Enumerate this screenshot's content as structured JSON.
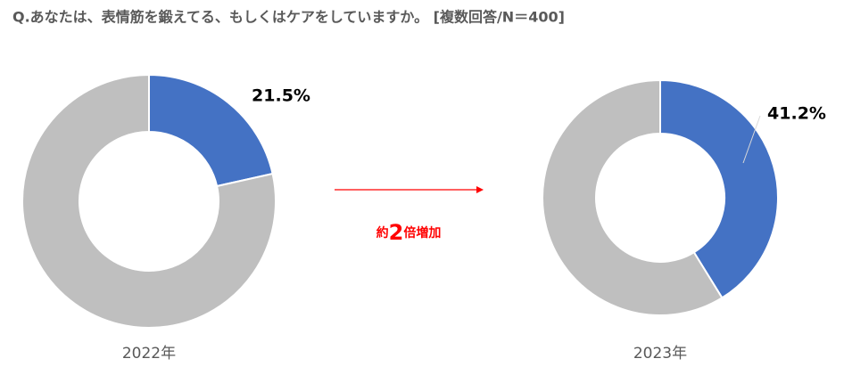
{
  "title": "Q.あなたは、表情筋を鍛えてる、もしくはケアをしていますか。 [複数回答/N＝400]",
  "annotation": [
    "約",
    "2",
    "倍増加"
  ],
  "chart_data": [
    {
      "type": "donut",
      "xlabel": "2022年",
      "values": [
        21.5,
        78.5
      ],
      "value_labels": [
        "21.5%",
        null
      ],
      "colors": [
        "#4472c4",
        "#bfbfbf"
      ]
    },
    {
      "type": "donut",
      "xlabel": "2023年",
      "values": [
        41.2,
        58.8
      ],
      "value_labels": [
        "41.2%",
        null
      ],
      "colors": [
        "#4472c4",
        "#bfbfbf"
      ]
    }
  ]
}
